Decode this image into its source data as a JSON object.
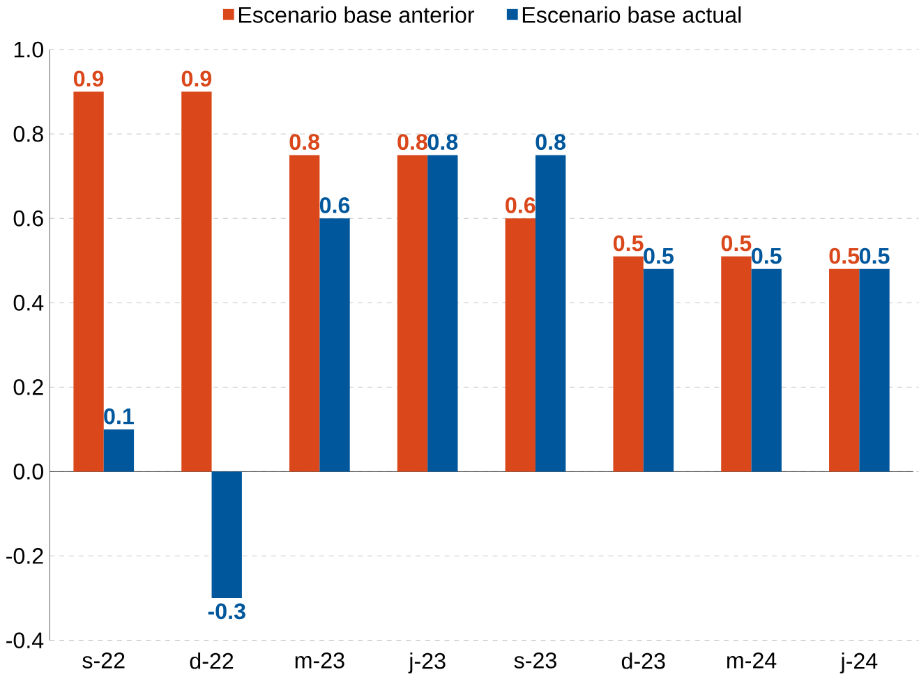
{
  "chart_data": {
    "type": "bar",
    "categories": [
      "s-22",
      "d-22",
      "m-23",
      "j-23",
      "s-23",
      "d-23",
      "m-24",
      "j-24"
    ],
    "series": [
      {
        "name": "Escenario base anterior",
        "color": "#d9471b",
        "values": [
          0.9,
          0.9,
          0.75,
          0.75,
          0.6,
          0.51,
          0.51,
          0.48
        ],
        "value_labels": [
          "0.9",
          "0.9",
          "0.8",
          "0.8",
          "0.6",
          "0.5",
          "0.5",
          "0.5"
        ]
      },
      {
        "name": "Escenario base actual",
        "color": "#00579c",
        "values": [
          0.1,
          -0.3,
          0.6,
          0.75,
          0.75,
          0.48,
          0.48,
          0.48
        ],
        "value_labels": [
          "0.1",
          "-0.3",
          "0.6",
          "0.8",
          "0.8",
          "0.5",
          "0.5",
          "0.5"
        ]
      }
    ],
    "ylim": [
      -0.4,
      1.0
    ],
    "yticks": [
      "-0.4",
      "-0.2",
      "0.0",
      "0.2",
      "0.4",
      "0.6",
      "0.8",
      "1.0"
    ],
    "grid": "y",
    "legend": "top"
  }
}
